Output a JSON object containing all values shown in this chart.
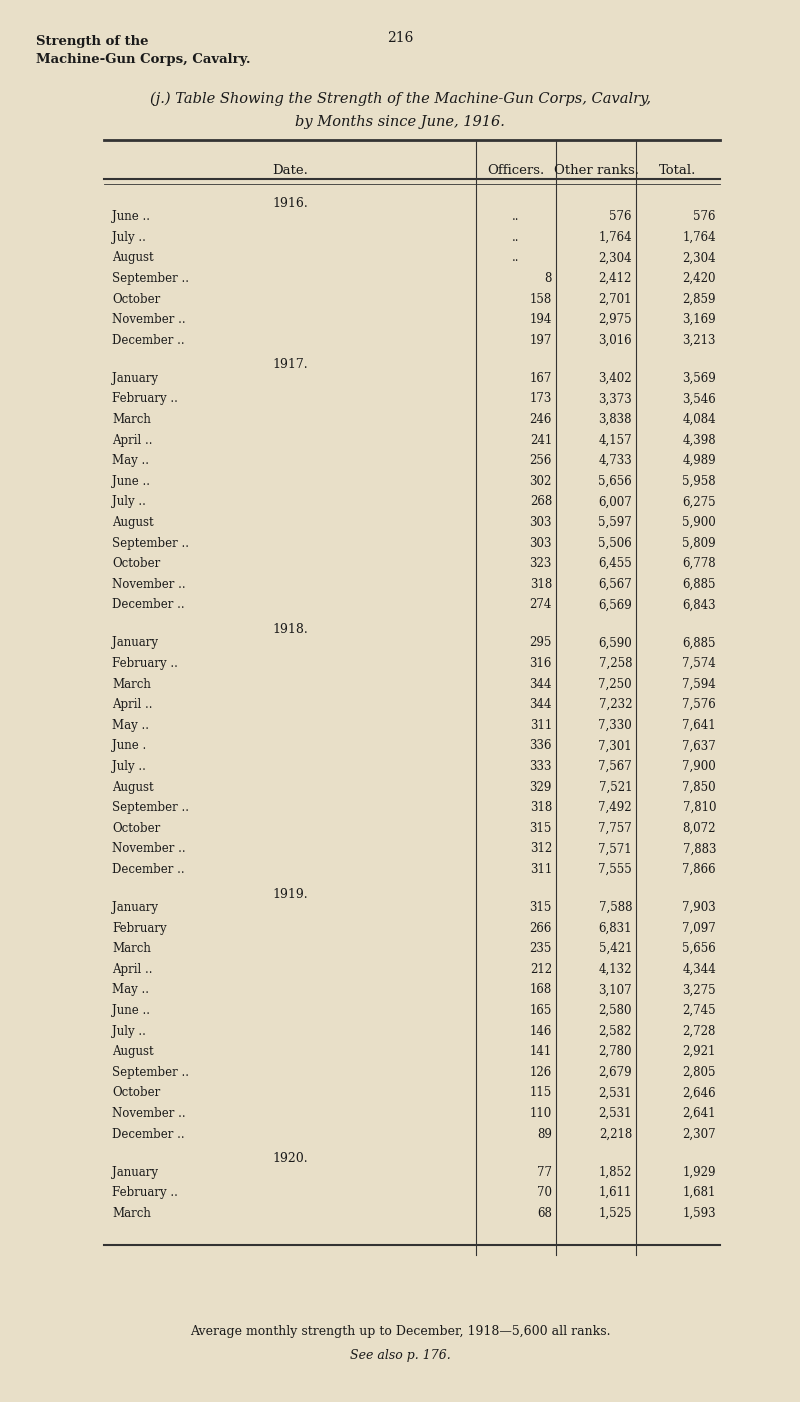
{
  "page_header_left": "Strength of the\nMachine-Gun Corps, Cavalry.",
  "page_number": "216",
  "title_line1": "(j.) Table Showing the Strength of the Machine-Gun Corps, Cavalry,",
  "title_line2": "by Months since June, 1916.",
  "col_headers": [
    "Date.",
    "Officers.",
    "Other ranks.",
    "Total."
  ],
  "years": [
    "1916.",
    "1917.",
    "1918.",
    "1919.",
    "1920."
  ],
  "rows": [
    [
      "1916.",
      null,
      null,
      null
    ],
    [
      "June ..",
      "..",
      "576",
      "576"
    ],
    [
      "July ..",
      "..",
      "1,764",
      "1,764"
    ],
    [
      "August",
      "..",
      "2,304",
      "2,304"
    ],
    [
      "September ..",
      "8",
      "2,412",
      "2,420"
    ],
    [
      "October",
      "158",
      "2,701",
      "2,859"
    ],
    [
      "November ..",
      "194",
      "2,975",
      "3,169"
    ],
    [
      "December ..",
      "197",
      "3,016",
      "3,213"
    ],
    [
      "1917.",
      null,
      null,
      null
    ],
    [
      "January",
      "167",
      "3,402",
      "3,569"
    ],
    [
      "February ..",
      "173",
      "3,373",
      "3,546"
    ],
    [
      "March",
      "246",
      "3,838",
      "4,084"
    ],
    [
      "April ..",
      "241",
      "4,157",
      "4,398"
    ],
    [
      "May ..",
      "256",
      "4,733",
      "4,989"
    ],
    [
      "June ..",
      "302",
      "5,656",
      "5,958"
    ],
    [
      "July ..",
      "268",
      "6,007",
      "6,275"
    ],
    [
      "August",
      "303",
      "5,597",
      "5,900"
    ],
    [
      "September ..",
      "303",
      "5,506",
      "5,809"
    ],
    [
      "October",
      "323",
      "6,455",
      "6,778"
    ],
    [
      "November ..",
      "318",
      "6,567",
      "6,885"
    ],
    [
      "December ..",
      "274",
      "6,569",
      "6,843"
    ],
    [
      "1918.",
      null,
      null,
      null
    ],
    [
      "January",
      "295",
      "6,590",
      "6,885"
    ],
    [
      "February ..",
      "316",
      "7,258",
      "7,574"
    ],
    [
      "March",
      "344",
      "7,250",
      "7,594"
    ],
    [
      "April ..",
      "344",
      "7,232",
      "7,576"
    ],
    [
      "May ..",
      "311",
      "7,330",
      "7,641"
    ],
    [
      "June .",
      "336",
      "7,301",
      "7,637"
    ],
    [
      "July ..",
      "333",
      "7,567",
      "7,900"
    ],
    [
      "August",
      "329",
      "7,521",
      "7,850"
    ],
    [
      "September ..",
      "318",
      "7,492",
      "7,810"
    ],
    [
      "October",
      "315",
      "7,757",
      "8,072"
    ],
    [
      "November ..",
      "312",
      "7,571",
      "7,883"
    ],
    [
      "December ..",
      "311",
      "7,555",
      "7,866"
    ],
    [
      "1919.",
      null,
      null,
      null
    ],
    [
      "January",
      "315",
      "7,588",
      "7,903"
    ],
    [
      "February",
      "266",
      "6,831",
      "7,097"
    ],
    [
      "March",
      "235",
      "5,421",
      "5,656"
    ],
    [
      "April ..",
      "212",
      "4,132",
      "4,344"
    ],
    [
      "May ..",
      "168",
      "3,107",
      "3,275"
    ],
    [
      "June ..",
      "165",
      "2,580",
      "2,745"
    ],
    [
      "July ..",
      "146",
      "2,582",
      "2,728"
    ],
    [
      "August",
      "141",
      "2,780",
      "2,921"
    ],
    [
      "September ..",
      "126",
      "2,679",
      "2,805"
    ],
    [
      "October",
      "115",
      "2,531",
      "2,646"
    ],
    [
      "November ..",
      "110",
      "2,531",
      "2,641"
    ],
    [
      "December ..",
      "89",
      "2,218",
      "2,307"
    ],
    [
      "1920.",
      null,
      null,
      null
    ],
    [
      "January",
      "77",
      "1,852",
      "1,929"
    ],
    [
      "February ..",
      "70",
      "1,611",
      "1,681"
    ],
    [
      "March",
      "68",
      "1,525",
      "1,593"
    ]
  ],
  "footer_line1": "Average monthly strength up to December, 1918—5,600 all ranks.",
  "footer_line2": "See also p. 176.",
  "bg_color": "#e8dfc8",
  "text_color": "#1a1a1a",
  "line_color": "#333333"
}
